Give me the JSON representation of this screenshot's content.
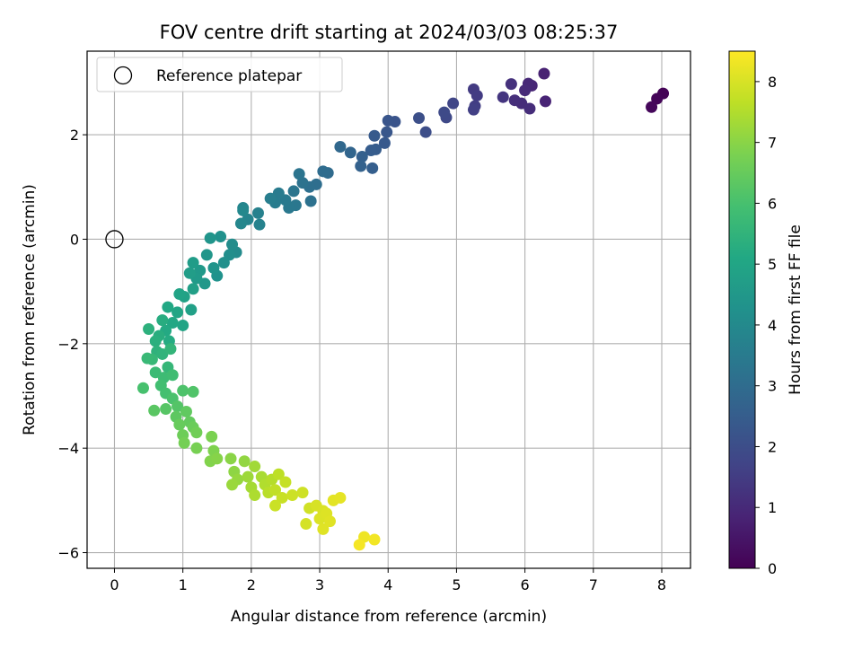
{
  "chart_data": {
    "type": "scatter",
    "title": "FOV centre drift starting at 2024/03/03 08:25:37",
    "xlabel": "Angular distance from reference (arcmin)",
    "ylabel": "Rotation from reference (arcmin)",
    "xlim": [
      -0.4,
      8.42
    ],
    "ylim": [
      -6.3,
      3.6
    ],
    "x_ticks": [
      0,
      1,
      2,
      3,
      4,
      5,
      6,
      7,
      8
    ],
    "y_ticks": [
      -6,
      -4,
      -2,
      0,
      2
    ],
    "x_tick_labels": [
      "0",
      "1",
      "2",
      "3",
      "4",
      "5",
      "6",
      "7",
      "8"
    ],
    "y_tick_labels": [
      "−6",
      "−4",
      "−2",
      "0",
      "2"
    ],
    "grid": true,
    "legend": {
      "position": "top-left",
      "entries": [
        "Reference platepar"
      ]
    },
    "reference_point": {
      "x": 0,
      "y": 0,
      "label": "Reference platepar"
    },
    "colorbar": {
      "label": "Hours from first FF file",
      "colormap": "viridis",
      "range": [
        0,
        8.5
      ],
      "ticks": [
        0,
        1,
        2,
        3,
        4,
        5,
        6,
        7,
        8
      ],
      "tick_labels": [
        "0",
        "1",
        "2",
        "3",
        "4",
        "5",
        "6",
        "7",
        "8"
      ]
    },
    "points": [
      {
        "x": 8.02,
        "y": 2.79,
        "t": 0.05
      },
      {
        "x": 7.93,
        "y": 2.69,
        "t": 0.1
      },
      {
        "x": 7.85,
        "y": 2.53,
        "t": 0.15
      },
      {
        "x": 6.28,
        "y": 3.17,
        "t": 0.8
      },
      {
        "x": 6.3,
        "y": 2.64,
        "t": 0.85
      },
      {
        "x": 6.1,
        "y": 2.94,
        "t": 0.9
      },
      {
        "x": 6.05,
        "y": 2.98,
        "t": 0.95
      },
      {
        "x": 6.0,
        "y": 2.85,
        "t": 1.0
      },
      {
        "x": 5.95,
        "y": 2.6,
        "t": 1.05
      },
      {
        "x": 6.07,
        "y": 2.5,
        "t": 1.1
      },
      {
        "x": 5.85,
        "y": 2.66,
        "t": 1.15
      },
      {
        "x": 5.8,
        "y": 2.97,
        "t": 1.2
      },
      {
        "x": 5.68,
        "y": 2.72,
        "t": 1.3
      },
      {
        "x": 5.25,
        "y": 2.87,
        "t": 1.45
      },
      {
        "x": 5.3,
        "y": 2.75,
        "t": 1.5
      },
      {
        "x": 5.27,
        "y": 2.55,
        "t": 1.55
      },
      {
        "x": 5.25,
        "y": 2.48,
        "t": 1.6
      },
      {
        "x": 4.95,
        "y": 2.6,
        "t": 1.75
      },
      {
        "x": 4.85,
        "y": 2.33,
        "t": 1.85
      },
      {
        "x": 4.82,
        "y": 2.43,
        "t": 1.9
      },
      {
        "x": 4.55,
        "y": 2.05,
        "t": 2.0
      },
      {
        "x": 4.45,
        "y": 2.32,
        "t": 2.05
      },
      {
        "x": 4.1,
        "y": 2.25,
        "t": 2.2
      },
      {
        "x": 4.0,
        "y": 2.27,
        "t": 2.25
      },
      {
        "x": 3.98,
        "y": 2.05,
        "t": 2.3
      },
      {
        "x": 3.95,
        "y": 1.84,
        "t": 2.35
      },
      {
        "x": 3.8,
        "y": 1.98,
        "t": 2.4
      },
      {
        "x": 3.82,
        "y": 1.72,
        "t": 2.45
      },
      {
        "x": 3.75,
        "y": 1.7,
        "t": 2.5
      },
      {
        "x": 3.77,
        "y": 1.36,
        "t": 2.55
      },
      {
        "x": 3.62,
        "y": 1.58,
        "t": 2.6
      },
      {
        "x": 3.6,
        "y": 1.4,
        "t": 2.65
      },
      {
        "x": 3.45,
        "y": 1.66,
        "t": 2.75
      },
      {
        "x": 3.3,
        "y": 1.77,
        "t": 2.85
      },
      {
        "x": 3.12,
        "y": 1.27,
        "t": 2.95
      },
      {
        "x": 3.05,
        "y": 1.3,
        "t": 3.0
      },
      {
        "x": 2.95,
        "y": 1.05,
        "t": 3.05
      },
      {
        "x": 2.85,
        "y": 1.0,
        "t": 3.1
      },
      {
        "x": 2.87,
        "y": 0.73,
        "t": 3.15
      },
      {
        "x": 2.75,
        "y": 1.08,
        "t": 3.2
      },
      {
        "x": 2.7,
        "y": 1.25,
        "t": 3.25
      },
      {
        "x": 2.62,
        "y": 0.92,
        "t": 3.3
      },
      {
        "x": 2.65,
        "y": 0.65,
        "t": 3.35
      },
      {
        "x": 2.55,
        "y": 0.6,
        "t": 3.4
      },
      {
        "x": 2.5,
        "y": 0.75,
        "t": 3.45
      },
      {
        "x": 2.4,
        "y": 0.88,
        "t": 3.5
      },
      {
        "x": 2.35,
        "y": 0.7,
        "t": 3.55
      },
      {
        "x": 2.28,
        "y": 0.78,
        "t": 3.6
      },
      {
        "x": 2.1,
        "y": 0.5,
        "t": 3.7
      },
      {
        "x": 2.12,
        "y": 0.28,
        "t": 3.75
      },
      {
        "x": 1.95,
        "y": 0.38,
        "t": 3.8
      },
      {
        "x": 1.88,
        "y": 0.6,
        "t": 3.85
      },
      {
        "x": 1.85,
        "y": 0.3,
        "t": 3.9
      },
      {
        "x": 1.88,
        "y": 0.55,
        "t": 3.95
      },
      {
        "x": 1.78,
        "y": -0.25,
        "t": 4.05
      },
      {
        "x": 1.72,
        "y": -0.1,
        "t": 4.1
      },
      {
        "x": 1.68,
        "y": -0.3,
        "t": 4.15
      },
      {
        "x": 1.6,
        "y": -0.45,
        "t": 4.2
      },
      {
        "x": 1.55,
        "y": 0.05,
        "t": 4.25
      },
      {
        "x": 1.5,
        "y": -0.7,
        "t": 4.3
      },
      {
        "x": 1.45,
        "y": -0.55,
        "t": 4.35
      },
      {
        "x": 1.4,
        "y": 0.02,
        "t": 4.4
      },
      {
        "x": 1.35,
        "y": -0.3,
        "t": 4.45
      },
      {
        "x": 1.32,
        "y": -0.85,
        "t": 4.5
      },
      {
        "x": 1.25,
        "y": -0.6,
        "t": 4.55
      },
      {
        "x": 1.2,
        "y": -0.75,
        "t": 4.6
      },
      {
        "x": 1.15,
        "y": -0.45,
        "t": 4.65
      },
      {
        "x": 1.1,
        "y": -0.65,
        "t": 4.7
      },
      {
        "x": 1.15,
        "y": -0.95,
        "t": 4.75
      },
      {
        "x": 1.12,
        "y": -1.35,
        "t": 4.8
      },
      {
        "x": 1.02,
        "y": -1.1,
        "t": 4.85
      },
      {
        "x": 0.95,
        "y": -1.05,
        "t": 4.9
      },
      {
        "x": 1.0,
        "y": -1.65,
        "t": 4.95
      },
      {
        "x": 0.92,
        "y": -1.4,
        "t": 5.0
      },
      {
        "x": 0.85,
        "y": -1.6,
        "t": 5.05
      },
      {
        "x": 0.78,
        "y": -1.3,
        "t": 5.1
      },
      {
        "x": 0.75,
        "y": -1.75,
        "t": 5.15
      },
      {
        "x": 0.8,
        "y": -1.95,
        "t": 5.2
      },
      {
        "x": 0.7,
        "y": -1.55,
        "t": 5.25
      },
      {
        "x": 0.65,
        "y": -1.85,
        "t": 5.3
      },
      {
        "x": 0.6,
        "y": -1.95,
        "t": 5.35
      },
      {
        "x": 0.5,
        "y": -1.72,
        "t": 5.4
      },
      {
        "x": 0.62,
        "y": -2.15,
        "t": 5.45
      },
      {
        "x": 0.7,
        "y": -2.2,
        "t": 5.5
      },
      {
        "x": 0.82,
        "y": -2.1,
        "t": 5.55
      },
      {
        "x": 0.78,
        "y": -2.45,
        "t": 5.6
      },
      {
        "x": 0.55,
        "y": -2.3,
        "t": 5.65
      },
      {
        "x": 0.48,
        "y": -2.28,
        "t": 5.7
      },
      {
        "x": 0.6,
        "y": -2.55,
        "t": 5.75
      },
      {
        "x": 0.72,
        "y": -2.65,
        "t": 5.8
      },
      {
        "x": 0.85,
        "y": -2.6,
        "t": 5.85
      },
      {
        "x": 0.68,
        "y": -2.8,
        "t": 5.9
      },
      {
        "x": 0.75,
        "y": -2.95,
        "t": 5.95
      },
      {
        "x": 0.42,
        "y": -2.85,
        "t": 6.0
      },
      {
        "x": 0.85,
        "y": -3.05,
        "t": 6.05
      },
      {
        "x": 1.0,
        "y": -2.9,
        "t": 6.1
      },
      {
        "x": 1.15,
        "y": -2.92,
        "t": 6.15
      },
      {
        "x": 0.92,
        "y": -3.2,
        "t": 6.2
      },
      {
        "x": 0.75,
        "y": -3.25,
        "t": 6.25
      },
      {
        "x": 0.58,
        "y": -3.28,
        "t": 6.3
      },
      {
        "x": 0.9,
        "y": -3.4,
        "t": 6.35
      },
      {
        "x": 1.05,
        "y": -3.3,
        "t": 6.4
      },
      {
        "x": 1.1,
        "y": -3.5,
        "t": 6.45
      },
      {
        "x": 0.95,
        "y": -3.55,
        "t": 6.5
      },
      {
        "x": 1.15,
        "y": -3.6,
        "t": 6.55
      },
      {
        "x": 1.0,
        "y": -3.75,
        "t": 6.6
      },
      {
        "x": 1.2,
        "y": -3.7,
        "t": 6.65
      },
      {
        "x": 1.02,
        "y": -3.9,
        "t": 6.7
      },
      {
        "x": 1.2,
        "y": -4.0,
        "t": 6.75
      },
      {
        "x": 1.42,
        "y": -3.78,
        "t": 6.8
      },
      {
        "x": 1.45,
        "y": -4.05,
        "t": 6.85
      },
      {
        "x": 1.4,
        "y": -4.25,
        "t": 6.9
      },
      {
        "x": 1.5,
        "y": -4.2,
        "t": 6.95
      },
      {
        "x": 1.7,
        "y": -4.2,
        "t": 7.0
      },
      {
        "x": 1.75,
        "y": -4.45,
        "t": 7.05
      },
      {
        "x": 1.9,
        "y": -4.25,
        "t": 7.1
      },
      {
        "x": 1.8,
        "y": -4.6,
        "t": 7.15
      },
      {
        "x": 1.72,
        "y": -4.7,
        "t": 7.2
      },
      {
        "x": 1.95,
        "y": -4.55,
        "t": 7.25
      },
      {
        "x": 2.05,
        "y": -4.35,
        "t": 7.3
      },
      {
        "x": 2.0,
        "y": -4.75,
        "t": 7.35
      },
      {
        "x": 2.15,
        "y": -4.55,
        "t": 7.4
      },
      {
        "x": 2.05,
        "y": -4.9,
        "t": 7.45
      },
      {
        "x": 2.2,
        "y": -4.7,
        "t": 7.5
      },
      {
        "x": 2.3,
        "y": -4.6,
        "t": 7.55
      },
      {
        "x": 2.25,
        "y": -4.85,
        "t": 7.6
      },
      {
        "x": 2.4,
        "y": -4.5,
        "t": 7.65
      },
      {
        "x": 2.35,
        "y": -4.8,
        "t": 7.7
      },
      {
        "x": 2.5,
        "y": -4.65,
        "t": 7.75
      },
      {
        "x": 2.45,
        "y": -4.95,
        "t": 7.8
      },
      {
        "x": 2.35,
        "y": -5.1,
        "t": 7.82
      },
      {
        "x": 2.6,
        "y": -4.9,
        "t": 7.85
      },
      {
        "x": 2.75,
        "y": -4.85,
        "t": 7.88
      },
      {
        "x": 2.85,
        "y": -5.15,
        "t": 7.9
      },
      {
        "x": 2.8,
        "y": -5.45,
        "t": 7.95
      },
      {
        "x": 2.95,
        "y": -5.1,
        "t": 8.0
      },
      {
        "x": 3.05,
        "y": -5.2,
        "t": 8.02
      },
      {
        "x": 3.0,
        "y": -5.35,
        "t": 8.05
      },
      {
        "x": 3.1,
        "y": -5.25,
        "t": 8.08
      },
      {
        "x": 3.05,
        "y": -5.55,
        "t": 8.1
      },
      {
        "x": 3.15,
        "y": -5.4,
        "t": 8.12
      },
      {
        "x": 3.2,
        "y": -5.0,
        "t": 8.15
      },
      {
        "x": 3.3,
        "y": -4.95,
        "t": 8.18
      },
      {
        "x": 3.65,
        "y": -5.7,
        "t": 8.3
      },
      {
        "x": 3.8,
        "y": -5.75,
        "t": 8.35
      },
      {
        "x": 3.58,
        "y": -5.85,
        "t": 8.4
      }
    ]
  }
}
